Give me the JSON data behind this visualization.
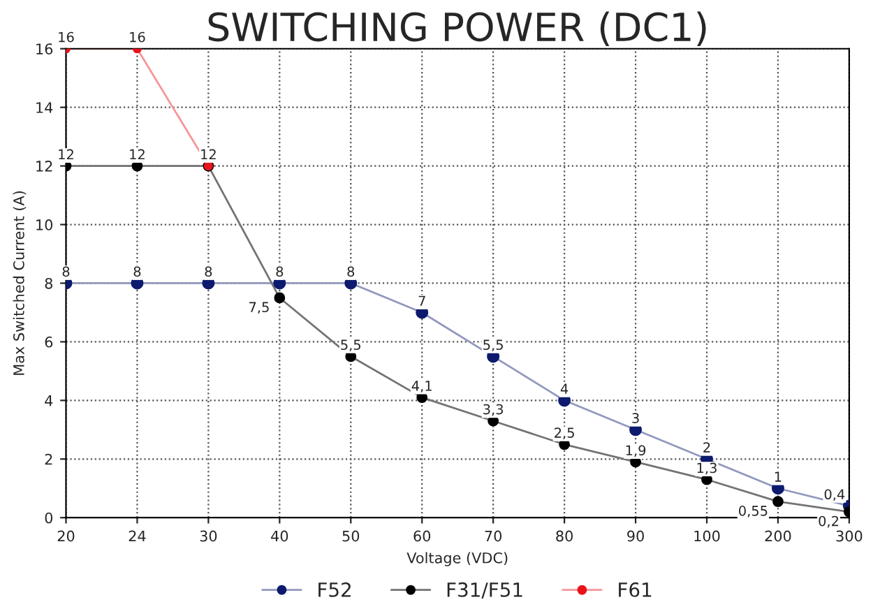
{
  "chart_data": {
    "type": "line",
    "title": "SWITCHING POWER (DC1)",
    "xlabel": "Voltage (VDC)",
    "ylabel": "Max Switched Current (A)",
    "categories": [
      "20",
      "24",
      "30",
      "40",
      "50",
      "60",
      "70",
      "80",
      "90",
      "100",
      "200",
      "300"
    ],
    "series": [
      {
        "name": "F52",
        "color": "#0d1a6e",
        "values": [
          8,
          8,
          8,
          8,
          8,
          7,
          5.5,
          4,
          3,
          2,
          1,
          0.4
        ],
        "value_labels": [
          "8",
          "8",
          "8",
          "8",
          "8",
          "7",
          "5,5",
          "4",
          "3",
          "2",
          "1",
          "0,4"
        ]
      },
      {
        "name": "F31/F51",
        "color": "#000000",
        "values": [
          12,
          12,
          12,
          7.5,
          5.5,
          4.1,
          3.3,
          2.5,
          1.9,
          1.3,
          0.55,
          0.2
        ],
        "value_labels": [
          "12",
          "12",
          null,
          "7,5",
          "5,5",
          "4,1",
          "3,3",
          "2,5",
          "1,9",
          "1,3",
          "0,55",
          "0,2"
        ]
      },
      {
        "name": "F61",
        "color": "#e8141c",
        "values": [
          16,
          16,
          12,
          null,
          null,
          null,
          null,
          null,
          null,
          null,
          null,
          null
        ],
        "value_labels": [
          "16",
          "16",
          "12",
          null,
          null,
          null,
          null,
          null,
          null,
          null,
          null,
          null
        ]
      }
    ],
    "ylim": [
      0,
      16
    ],
    "yticks": [
      0,
      2,
      4,
      6,
      8,
      10,
      12,
      14,
      16
    ],
    "grid": true,
    "legend": "bottom",
    "marker": "circle",
    "line_style": "solid"
  }
}
